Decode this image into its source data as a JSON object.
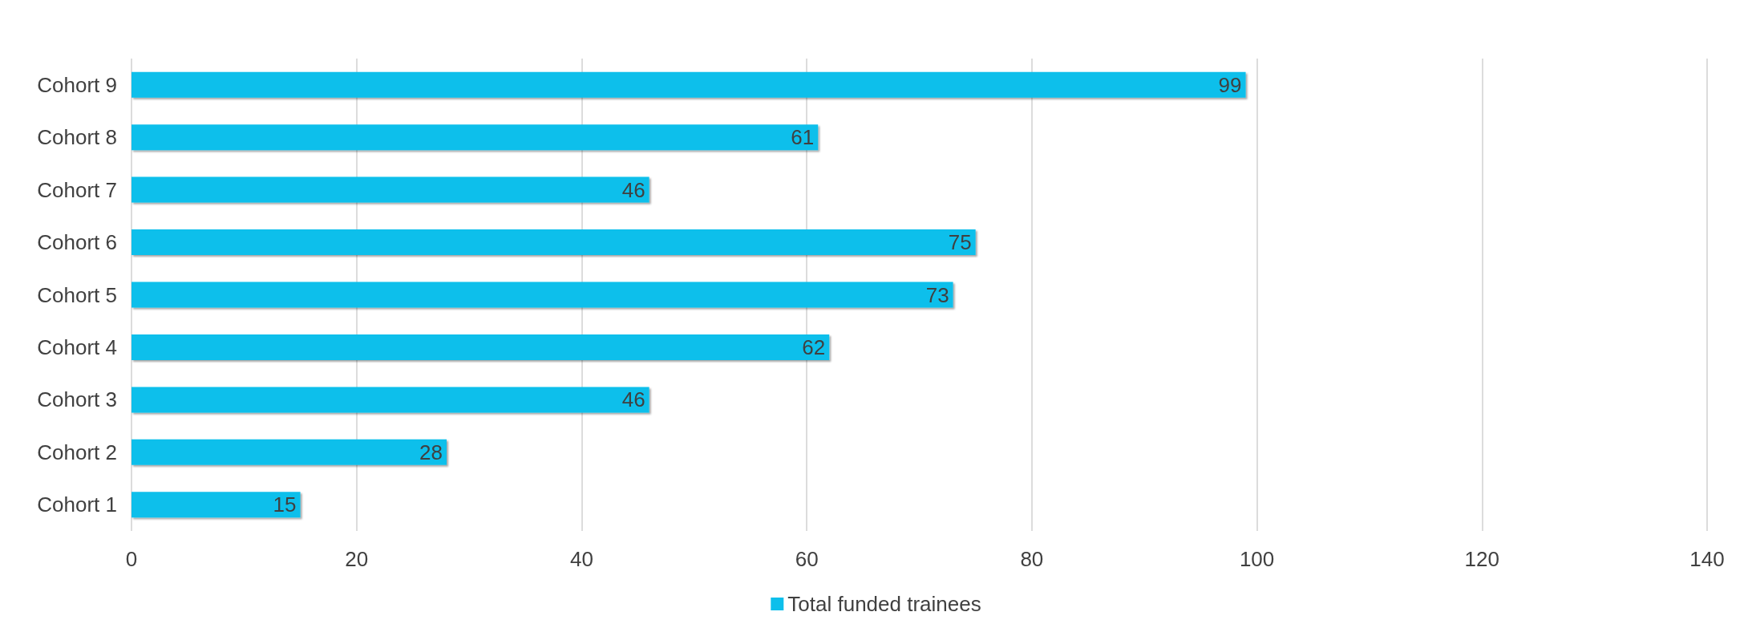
{
  "chart_data": {
    "type": "bar",
    "orientation": "horizontal",
    "categories": [
      "Cohort 9",
      "Cohort 8",
      "Cohort 7",
      "Cohort 6",
      "Cohort 5",
      "Cohort 4",
      "Cohort 3",
      "Cohort 2",
      "Cohort 1"
    ],
    "series": [
      {
        "name": "Total funded trainees",
        "color": "#0dbfeb",
        "values": [
          99,
          61,
          46,
          75,
          73,
          62,
          46,
          28,
          15
        ]
      }
    ],
    "xlim": [
      0,
      140
    ],
    "xticks": [
      0,
      20,
      40,
      60,
      80,
      100,
      120,
      140
    ],
    "grid": "x",
    "legend": "bottom",
    "data_labels": true
  }
}
